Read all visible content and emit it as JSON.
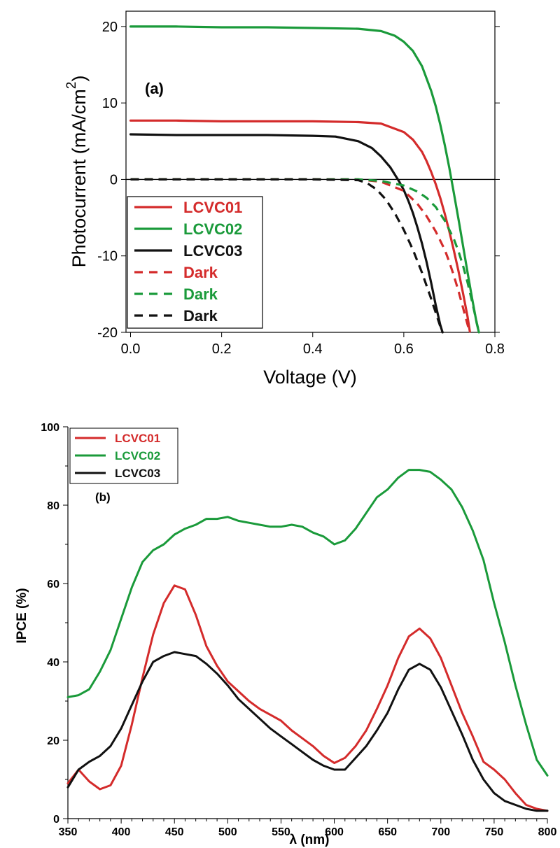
{
  "chart_data": [
    {
      "type": "line",
      "title": "",
      "annotation": "(a)",
      "xlabel": "Voltage (V)",
      "ylabel": "Photocurrent (mA/cm",
      "ylabel_superscript": "2",
      "ylabel_close": ")",
      "xlim": [
        -0.01,
        0.8
      ],
      "ylim": [
        -20,
        22
      ],
      "xticks": [
        0.0,
        0.2,
        0.4,
        0.6,
        0.8
      ],
      "xtick_labels": [
        "0.0",
        "0.2",
        "0.4",
        "0.6",
        "0.8"
      ],
      "yticks": [
        -20,
        -10,
        0,
        10,
        20
      ],
      "ytick_labels": [
        "-20",
        "-10",
        "0",
        "10",
        "20"
      ],
      "zero_line": true,
      "grid": false,
      "legend_position": "bottom-left",
      "series": [
        {
          "name": "LCVC01",
          "color": "#d42b2b",
          "style": "solid",
          "x": [
            0,
            0.1,
            0.2,
            0.3,
            0.4,
            0.5,
            0.55,
            0.6,
            0.62,
            0.64,
            0.65,
            0.66,
            0.67,
            0.68,
            0.69,
            0.7,
            0.71,
            0.72,
            0.73,
            0.74,
            0.745
          ],
          "y": [
            7.7,
            7.7,
            7.6,
            7.6,
            7.6,
            7.5,
            7.3,
            6.2,
            5.2,
            3.6,
            2.4,
            1.0,
            -0.6,
            -2.4,
            -4.5,
            -6.8,
            -9.3,
            -12.0,
            -14.9,
            -18.0,
            -19.9
          ]
        },
        {
          "name": "LCVC02",
          "color": "#1a9a3a",
          "style": "solid",
          "x": [
            0,
            0.1,
            0.2,
            0.3,
            0.4,
            0.5,
            0.55,
            0.58,
            0.6,
            0.62,
            0.64,
            0.66,
            0.67,
            0.68,
            0.69,
            0.7,
            0.71,
            0.72,
            0.73,
            0.74,
            0.75,
            0.76,
            0.765
          ],
          "y": [
            20.0,
            20.0,
            19.9,
            19.9,
            19.8,
            19.7,
            19.4,
            18.8,
            18.0,
            16.8,
            14.8,
            11.6,
            9.6,
            7.2,
            4.5,
            1.5,
            -1.8,
            -5.2,
            -8.7,
            -12.2,
            -15.6,
            -18.8,
            -20.0
          ]
        },
        {
          "name": "LCVC03",
          "color": "#111111",
          "style": "solid",
          "x": [
            0,
            0.1,
            0.2,
            0.3,
            0.4,
            0.45,
            0.5,
            0.53,
            0.55,
            0.57,
            0.59,
            0.6,
            0.61,
            0.62,
            0.63,
            0.64,
            0.65,
            0.66,
            0.67,
            0.68,
            0.685
          ],
          "y": [
            5.9,
            5.8,
            5.8,
            5.8,
            5.7,
            5.6,
            5.0,
            4.1,
            3.0,
            1.6,
            -0.3,
            -1.4,
            -2.8,
            -4.4,
            -6.3,
            -8.4,
            -10.8,
            -13.5,
            -16.4,
            -19.0,
            -20.0
          ]
        },
        {
          "name": "Dark",
          "color": "#d42b2b",
          "style": "dashed",
          "x": [
            0,
            0.2,
            0.4,
            0.5,
            0.55,
            0.6,
            0.63,
            0.65,
            0.67,
            0.69,
            0.7,
            0.71,
            0.72,
            0.73,
            0.74,
            0.745
          ],
          "y": [
            0,
            0,
            0,
            0,
            -0.3,
            -1.5,
            -3.2,
            -4.8,
            -6.8,
            -9.2,
            -10.8,
            -12.6,
            -14.6,
            -16.8,
            -19.0,
            -20.0
          ]
        },
        {
          "name": "Dark",
          "color": "#1a9a3a",
          "style": "dashed",
          "x": [
            0,
            0.2,
            0.4,
            0.5,
            0.55,
            0.6,
            0.63,
            0.65,
            0.67,
            0.69,
            0.71,
            0.72,
            0.73,
            0.74,
            0.75,
            0.76,
            0.765
          ],
          "y": [
            0,
            0,
            0,
            0,
            -0.2,
            -0.8,
            -1.6,
            -2.4,
            -3.6,
            -5.4,
            -7.8,
            -9.4,
            -11.3,
            -13.5,
            -16.0,
            -18.7,
            -20.0
          ]
        },
        {
          "name": "Dark",
          "color": "#111111",
          "style": "dashed",
          "x": [
            0,
            0.2,
            0.4,
            0.5,
            0.52,
            0.54,
            0.56,
            0.58,
            0.6,
            0.62,
            0.64,
            0.66,
            0.68,
            0.685
          ],
          "y": [
            0,
            0,
            0,
            -0.1,
            -0.5,
            -1.3,
            -2.6,
            -4.4,
            -6.6,
            -9.2,
            -12.2,
            -15.6,
            -19.2,
            -20.0
          ]
        }
      ]
    },
    {
      "type": "line",
      "title": "",
      "annotation": "(b)",
      "xlabel": "λ (nm)",
      "ylabel": "IPCE (%)",
      "xlim": [
        350,
        800
      ],
      "ylim": [
        0,
        100
      ],
      "xticks": [
        350,
        400,
        450,
        500,
        550,
        600,
        650,
        700,
        750,
        800
      ],
      "xtick_labels": [
        "350",
        "400",
        "450",
        "500",
        "550",
        "600",
        "650",
        "700",
        "750",
        "800"
      ],
      "yticks": [
        0,
        20,
        40,
        60,
        80,
        100
      ],
      "ytick_labels": [
        "0",
        "20",
        "40",
        "60",
        "80",
        "100"
      ],
      "grid": false,
      "legend_position": "top-left",
      "series": [
        {
          "name": "LCVC01",
          "color": "#d42b2b",
          "x": [
            350,
            360,
            370,
            380,
            390,
            400,
            410,
            420,
            430,
            440,
            450,
            460,
            470,
            480,
            490,
            500,
            510,
            520,
            530,
            540,
            550,
            560,
            570,
            580,
            590,
            600,
            610,
            620,
            630,
            640,
            650,
            660,
            670,
            680,
            690,
            700,
            710,
            720,
            730,
            740,
            750,
            760,
            770,
            780,
            790,
            800
          ],
          "y": [
            9,
            12.5,
            9.5,
            7.5,
            8.5,
            13.5,
            24,
            36,
            47,
            55,
            59.5,
            58.5,
            52,
            44,
            39,
            35,
            32.5,
            30,
            28,
            26.5,
            25,
            22.5,
            20.5,
            18.5,
            16,
            14.2,
            15.5,
            18.5,
            22.5,
            28,
            34,
            41,
            46.5,
            48.5,
            46,
            41,
            34,
            27,
            21,
            14.5,
            12.5,
            10,
            6.5,
            3.5,
            2.5,
            2
          ]
        },
        {
          "name": "LCVC02",
          "color": "#1a9a3a",
          "x": [
            350,
            360,
            370,
            380,
            390,
            400,
            410,
            420,
            430,
            440,
            450,
            460,
            470,
            480,
            490,
            500,
            510,
            520,
            530,
            540,
            550,
            560,
            570,
            580,
            590,
            600,
            610,
            620,
            630,
            640,
            650,
            660,
            670,
            680,
            690,
            700,
            710,
            720,
            730,
            740,
            750,
            760,
            770,
            780,
            790,
            800
          ],
          "y": [
            31,
            31.5,
            33,
            37.5,
            43,
            51,
            59,
            65.5,
            68.5,
            70,
            72.5,
            74,
            75,
            76.5,
            76.5,
            77,
            76,
            75.5,
            75,
            74.5,
            74.5,
            75,
            74.5,
            73,
            72,
            70,
            71,
            74,
            78,
            82,
            84,
            87,
            89,
            89,
            88.5,
            86.5,
            84,
            79.5,
            73.5,
            66,
            55,
            45,
            34,
            24,
            15,
            11
          ]
        },
        {
          "name": "LCVC03",
          "color": "#111111",
          "x": [
            350,
            360,
            370,
            380,
            390,
            400,
            410,
            420,
            430,
            440,
            450,
            460,
            470,
            480,
            490,
            500,
            510,
            520,
            530,
            540,
            550,
            560,
            570,
            580,
            590,
            600,
            610,
            620,
            630,
            640,
            650,
            660,
            670,
            680,
            690,
            700,
            710,
            720,
            730,
            740,
            750,
            760,
            770,
            780,
            790,
            800
          ],
          "y": [
            8,
            12.5,
            14.5,
            16,
            18.5,
            23,
            29,
            35,
            40,
            41.5,
            42.5,
            42,
            41.5,
            39.5,
            37,
            34,
            30.5,
            28,
            25.5,
            23,
            21,
            19,
            17,
            15,
            13.5,
            12.5,
            12.5,
            15.5,
            18.5,
            22.5,
            27,
            33,
            38,
            39.5,
            38,
            33.5,
            27.5,
            21.5,
            15,
            10,
            6.5,
            4.5,
            3.5,
            2.5,
            2,
            2
          ]
        }
      ]
    }
  ]
}
